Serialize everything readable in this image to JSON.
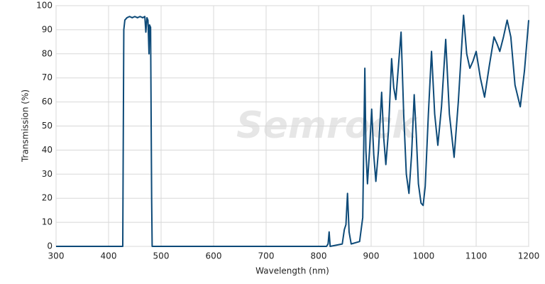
{
  "chart_data": {
    "type": "line",
    "watermark": "Semrock",
    "x_label": "Wavelength (nm)",
    "y_label": "Transmission (%)",
    "xlim": [
      300,
      1200
    ],
    "xticks": [
      300,
      400,
      500,
      600,
      700,
      800,
      900,
      1000,
      1100,
      1200
    ],
    "ylim": [
      0,
      100
    ],
    "yticks": [
      0,
      10,
      20,
      30,
      40,
      50,
      60,
      70,
      80,
      90,
      100
    ],
    "grid": true,
    "series": [
      {
        "color": "#0d4a78",
        "x": [
          300,
          427,
          429,
          431,
          435,
          440,
          445,
          450,
          455,
          460,
          465,
          469,
          471,
          473,
          475,
          477,
          478,
          480,
          482,
          483,
          815,
          818,
          820,
          822,
          845,
          849,
          852,
          855,
          858,
          862,
          878,
          884,
          888,
          890,
          893,
          897,
          901,
          905,
          909,
          914,
          920,
          924,
          928,
          933,
          939,
          943,
          947,
          952,
          957,
          962,
          967,
          972,
          977,
          982,
          986,
          990,
          995,
          999,
          1003,
          1009,
          1015,
          1021,
          1027,
          1034,
          1042,
          1049,
          1058,
          1066,
          1076,
          1082,
          1088,
          1094,
          1100,
          1108,
          1116,
          1125,
          1134,
          1140,
          1145,
          1152,
          1159,
          1166,
          1174,
          1184,
          1192,
          1200
        ],
        "values": [
          0,
          0,
          90,
          94,
          95,
          95.5,
          95,
          95.5,
          95,
          95.5,
          95,
          95.5,
          89,
          95,
          94,
          80,
          92,
          91,
          20,
          0,
          0,
          1,
          6,
          0,
          1,
          7,
          9,
          22,
          6,
          1,
          2,
          12,
          74,
          40,
          26,
          40,
          57,
          38,
          27,
          40,
          64,
          45,
          34,
          48,
          78,
          66,
          61,
          75,
          89,
          55,
          30,
          22,
          38,
          63,
          46,
          26,
          18,
          17,
          25,
          55,
          81,
          55,
          42,
          58,
          86,
          55,
          37,
          60,
          96,
          80,
          74,
          77,
          81,
          70,
          62,
          75,
          87,
          84,
          81,
          87,
          94,
          87,
          67,
          58,
          73,
          94
        ]
      }
    ]
  }
}
